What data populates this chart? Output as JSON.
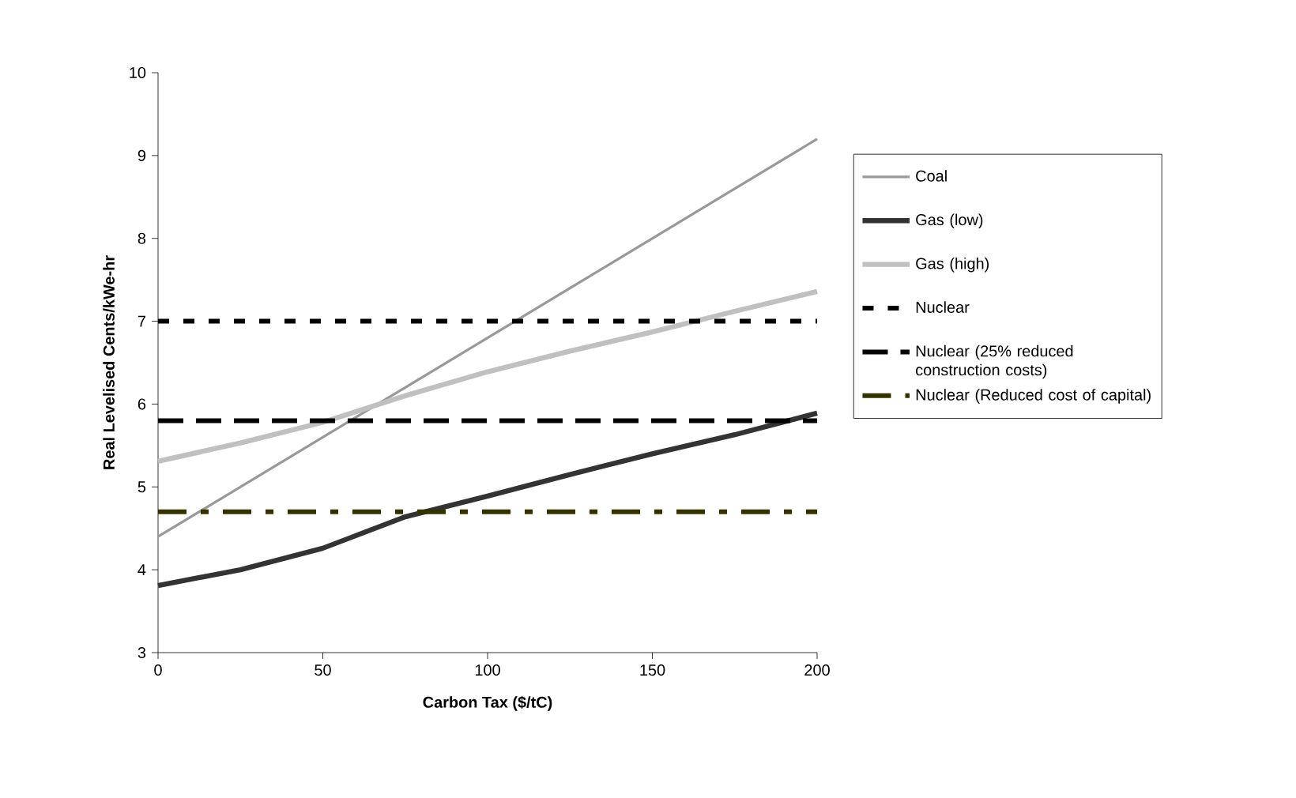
{
  "chart_data": {
    "type": "line",
    "xlabel": "Carbon Tax ($/tC)",
    "ylabel": "Real Levelised Cents/kWe-hr",
    "xlim": [
      0,
      200
    ],
    "ylim": [
      3,
      10
    ],
    "xticks": [
      0,
      50,
      100,
      150,
      200
    ],
    "yticks": [
      3,
      4,
      5,
      6,
      7,
      8,
      9,
      10
    ],
    "grid": false,
    "legend": "right",
    "marker": "none",
    "series": [
      {
        "name": "Coal",
        "color": "#999999",
        "line_style": "solid",
        "x": [
          0,
          200
        ],
        "values": [
          4.4,
          9.2
        ]
      },
      {
        "name": "Gas (low)",
        "color": "#333333",
        "line_style": "solid",
        "x": [
          0,
          25,
          50,
          75,
          100,
          125,
          150,
          175,
          200
        ],
        "values": [
          3.81,
          4.0,
          4.26,
          4.64,
          4.89,
          5.15,
          5.4,
          5.63,
          5.89
        ]
      },
      {
        "name": "Gas (high)",
        "color": "#c0c0c0",
        "line_style": "solid",
        "x": [
          0,
          25,
          50,
          75,
          100,
          125,
          150,
          175,
          200
        ],
        "values": [
          5.31,
          5.53,
          5.78,
          6.1,
          6.39,
          6.64,
          6.87,
          7.12,
          7.36
        ]
      },
      {
        "name": "Nuclear",
        "color": "#000000",
        "line_style": "dotted",
        "x": [
          0,
          200
        ],
        "values": [
          7.0,
          7.0
        ]
      },
      {
        "name": "Nuclear (25% reduced construction costs)",
        "color": "#000000",
        "line_style": "dashed",
        "x": [
          0,
          200
        ],
        "values": [
          5.8,
          5.8
        ]
      },
      {
        "name": "Nuclear (Reduced cost of capital)",
        "color": "#333300",
        "line_style": "dashdot",
        "x": [
          0,
          200
        ],
        "values": [
          4.7,
          4.7
        ]
      }
    ]
  }
}
